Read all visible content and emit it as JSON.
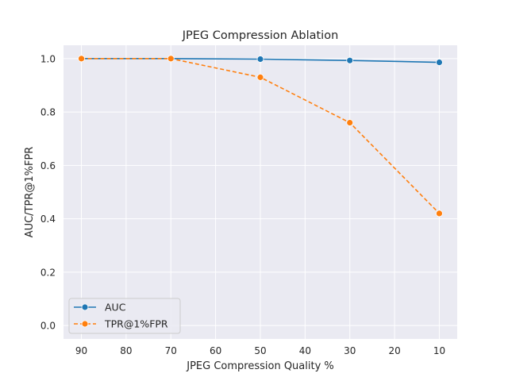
{
  "chart_data": {
    "type": "line",
    "title": "JPEG Compression Ablation",
    "xlabel": "JPEG Compression Quality %",
    "ylabel": "AUC/TPR@1%FPR",
    "x": [
      90,
      70,
      50,
      30,
      10
    ],
    "xticks": [
      90,
      80,
      70,
      60,
      50,
      40,
      30,
      20,
      10
    ],
    "yticks": [
      0.0,
      0.2,
      0.4,
      0.6,
      0.8,
      1.0
    ],
    "xlim": [
      94,
      6
    ],
    "ylim": [
      -0.05,
      1.05
    ],
    "x_reversed": true,
    "grid": true,
    "legend_position": "lower-left",
    "series": [
      {
        "name": "AUC",
        "values": [
          1.0,
          1.0,
          0.998,
          0.993,
          0.986
        ],
        "color": "#1f77b4",
        "linestyle": "solid",
        "marker": "circle"
      },
      {
        "name": "TPR@1%FPR",
        "values": [
          1.0,
          1.0,
          0.93,
          0.76,
          0.42
        ],
        "color": "#ff7f0e",
        "linestyle": "dashed",
        "marker": "circle"
      }
    ],
    "background_color": "#eaeaf2"
  }
}
